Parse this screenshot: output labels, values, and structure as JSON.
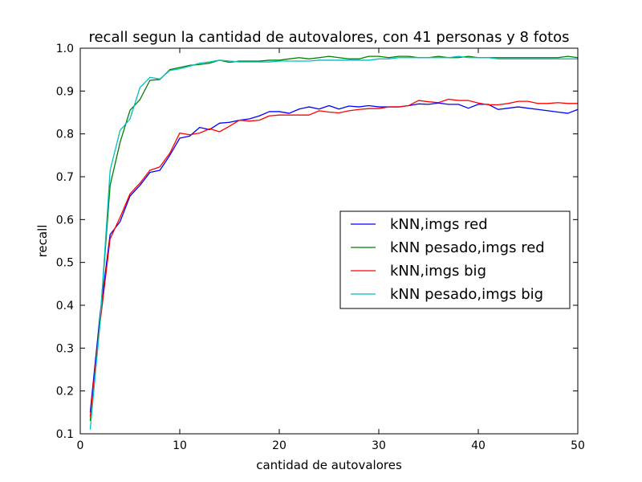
{
  "chart_data": {
    "type": "line",
    "title": "recall segun la cantidad de autovalores, con 41 personas y 8 fotos",
    "xlabel": "cantidad de autovalores",
    "ylabel": "recall",
    "xlim": [
      0,
      50
    ],
    "ylim": [
      0.1,
      1.0
    ],
    "xticks": [
      "0",
      "10",
      "20",
      "30",
      "40",
      "50"
    ],
    "yticks": [
      "0.1",
      "0.2",
      "0.3",
      "0.4",
      "0.5",
      "0.6",
      "0.7",
      "0.8",
      "0.9",
      "1.0"
    ],
    "grid": false,
    "legend_position": "center-right",
    "x": [
      1,
      2,
      3,
      4,
      5,
      6,
      7,
      8,
      9,
      10,
      11,
      12,
      13,
      14,
      15,
      16,
      17,
      18,
      19,
      20,
      21,
      22,
      23,
      24,
      25,
      26,
      27,
      28,
      29,
      30,
      31,
      32,
      33,
      34,
      35,
      36,
      37,
      38,
      39,
      40,
      41,
      42,
      43,
      44,
      45,
      46,
      47,
      48,
      49,
      50
    ],
    "series": [
      {
        "name": "kNN,imgs red",
        "color": "#0000ff",
        "values": [
          0.15,
          0.38,
          0.565,
          0.595,
          0.655,
          0.68,
          0.71,
          0.715,
          0.75,
          0.79,
          0.795,
          0.815,
          0.81,
          0.825,
          0.827,
          0.832,
          0.835,
          0.842,
          0.852,
          0.852,
          0.848,
          0.858,
          0.863,
          0.858,
          0.866,
          0.858,
          0.865,
          0.863,
          0.866,
          0.863,
          0.863,
          0.863,
          0.866,
          0.87,
          0.869,
          0.872,
          0.869,
          0.869,
          0.86,
          0.869,
          0.869,
          0.857,
          0.86,
          0.863,
          0.86,
          0.857,
          0.854,
          0.851,
          0.848,
          0.857
        ]
      },
      {
        "name": "kNN pesado,imgs red",
        "color": "#008000",
        "values": [
          0.13,
          0.37,
          0.68,
          0.78,
          0.855,
          0.88,
          0.925,
          0.927,
          0.95,
          0.955,
          0.96,
          0.962,
          0.965,
          0.972,
          0.967,
          0.97,
          0.97,
          0.97,
          0.972,
          0.972,
          0.975,
          0.978,
          0.975,
          0.978,
          0.981,
          0.978,
          0.975,
          0.975,
          0.981,
          0.981,
          0.978,
          0.981,
          0.981,
          0.978,
          0.978,
          0.981,
          0.978,
          0.978,
          0.981,
          0.978,
          0.978,
          0.978,
          0.978,
          0.978,
          0.978,
          0.978,
          0.978,
          0.978,
          0.981,
          0.978
        ]
      },
      {
        "name": "kNN,imgs big",
        "color": "#ff0000",
        "values": [
          0.14,
          0.36,
          0.555,
          0.605,
          0.66,
          0.685,
          0.715,
          0.723,
          0.755,
          0.802,
          0.798,
          0.802,
          0.812,
          0.805,
          0.818,
          0.832,
          0.83,
          0.832,
          0.842,
          0.844,
          0.844,
          0.844,
          0.844,
          0.854,
          0.851,
          0.849,
          0.854,
          0.857,
          0.859,
          0.859,
          0.863,
          0.863,
          0.866,
          0.878,
          0.875,
          0.873,
          0.881,
          0.878,
          0.878,
          0.872,
          0.868,
          0.868,
          0.871,
          0.876,
          0.876,
          0.871,
          0.871,
          0.873,
          0.871,
          0.871
        ]
      },
      {
        "name": "kNN pesado,imgs big",
        "color": "#00bfbf",
        "values": [
          0.11,
          0.36,
          0.715,
          0.808,
          0.835,
          0.908,
          0.932,
          0.928,
          0.948,
          0.952,
          0.958,
          0.965,
          0.968,
          0.972,
          0.97,
          0.968,
          0.968,
          0.968,
          0.968,
          0.97,
          0.97,
          0.97,
          0.97,
          0.972,
          0.972,
          0.972,
          0.972,
          0.972,
          0.972,
          0.975,
          0.975,
          0.978,
          0.978,
          0.978,
          0.978,
          0.978,
          0.978,
          0.981,
          0.978,
          0.978,
          0.978,
          0.975,
          0.975,
          0.975,
          0.975,
          0.975,
          0.975,
          0.975,
          0.975,
          0.975
        ]
      }
    ]
  }
}
